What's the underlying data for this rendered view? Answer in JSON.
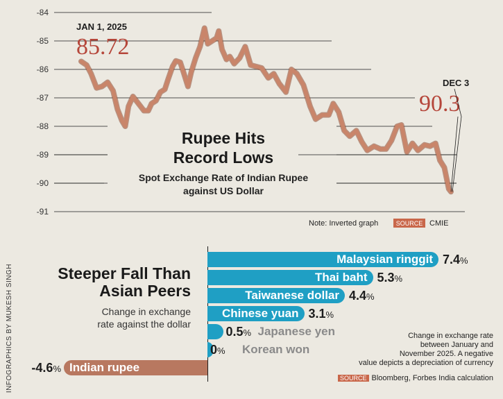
{
  "chart_data": [
    {
      "type": "line",
      "title": "Rupee Hits Record Lows",
      "subtitle": "Spot Exchange Rate of Indian Rupee against US Dollar",
      "y_inverted": true,
      "ylim": [
        -91,
        -84
      ],
      "yticks": [
        "-84",
        "-85",
        "-86",
        "-87",
        "-88",
        "-89",
        "-90",
        "-91"
      ],
      "x_start": "2025-01-01",
      "x_end": "2025-12-03",
      "x": [
        "2025-01-01",
        "2025-01-06",
        "2025-01-10",
        "2025-01-15",
        "2025-01-20",
        "2025-01-25",
        "2025-01-30",
        "2025-02-03",
        "2025-02-07",
        "2025-02-10",
        "2025-02-13",
        "2025-02-17",
        "2025-02-20",
        "2025-02-24",
        "2025-02-27",
        "2025-03-03",
        "2025-03-06",
        "2025-03-10",
        "2025-03-14",
        "2025-03-18",
        "2025-03-21",
        "2025-03-25",
        "2025-03-28",
        "2025-04-01",
        "2025-04-04",
        "2025-04-08",
        "2025-04-11",
        "2025-04-15",
        "2025-04-19",
        "2025-04-23",
        "2025-04-26",
        "2025-04-30",
        "2025-05-04",
        "2025-05-06",
        "2025-05-09",
        "2025-05-13",
        "2025-05-16",
        "2025-05-20",
        "2025-05-25",
        "2025-05-30",
        "2025-06-04",
        "2025-06-09",
        "2025-06-14",
        "2025-06-20",
        "2025-06-25",
        "2025-06-30",
        "2025-07-06",
        "2025-07-11",
        "2025-07-16",
        "2025-07-22",
        "2025-07-28",
        "2025-08-02",
        "2025-08-08",
        "2025-08-14",
        "2025-08-18",
        "2025-08-23",
        "2025-08-28",
        "2025-09-02",
        "2025-09-08",
        "2025-09-13",
        "2025-09-18",
        "2025-09-24",
        "2025-09-30",
        "2025-10-05",
        "2025-10-10",
        "2025-10-15",
        "2025-10-19",
        "2025-10-24",
        "2025-10-29",
        "2025-11-03",
        "2025-11-09",
        "2025-11-14",
        "2025-11-19",
        "2025-11-23",
        "2025-11-27",
        "2025-12-01",
        "2025-12-03"
      ],
      "series": [
        {
          "values": [
            -85.72,
            -85.85,
            -86.15,
            -86.65,
            -86.6,
            -86.45,
            -86.75,
            -87.4,
            -87.8,
            -88.0,
            -87.3,
            -86.95,
            -87.1,
            -87.3,
            -87.45,
            -87.45,
            -87.2,
            -87.1,
            -86.8,
            -86.7,
            -86.35,
            -85.9,
            -85.7,
            -85.75,
            -86.1,
            -86.6,
            -86.1,
            -85.6,
            -85.2,
            -84.55,
            -85.1,
            -85.0,
            -84.9,
            -84.65,
            -85.3,
            -85.65,
            -85.55,
            -85.8,
            -85.6,
            -85.2,
            -85.85,
            -85.9,
            -85.95,
            -86.3,
            -86.15,
            -86.5,
            -86.8,
            -86.0,
            -86.15,
            -86.55,
            -87.3,
            -87.75,
            -87.6,
            -87.6,
            -87.2,
            -87.5,
            -88.15,
            -88.35,
            -88.15,
            -88.55,
            -88.85,
            -88.7,
            -88.8,
            -88.8,
            -88.5,
            -88.0,
            -87.95,
            -88.9,
            -88.6,
            -88.85,
            -88.65,
            -88.7,
            -88.6,
            -89.2,
            -89.45,
            -90.2,
            -90.3
          ]
        }
      ],
      "annotations": [
        {
          "label": "JAN 1, 2025",
          "value": "85.72"
        },
        {
          "label": "DEC 3",
          "value": "90.3"
        }
      ],
      "note": "Note: Inverted graph",
      "source_tag": "SOURCE",
      "source": "CMIE",
      "grid": true
    },
    {
      "type": "bar",
      "orientation": "horizontal",
      "title_line1": "Steeper Fall Than",
      "title_line2": "Asian Peers",
      "subtitle_line1": "Change in exchange",
      "subtitle_line2": "rate against the dollar",
      "categories": [
        "Malaysian ringgit",
        "Thai baht",
        "Taiwanese dollar",
        "Chinese yuan",
        "Japanese yen",
        "Korean won",
        "Indian rupee"
      ],
      "values": [
        7.4,
        5.3,
        4.4,
        3.1,
        0.5,
        0,
        -4.6
      ],
      "value_labels": [
        "7.4",
        "5.3",
        "4.4",
        "3.1",
        "0.5",
        "0",
        "-4.6"
      ],
      "unit": "%",
      "colors": {
        "positive": "#1f9fc4",
        "negative": "#b87860"
      },
      "note_lines": [
        "Change in exchange rate",
        "between January and",
        "November 2025. A negative",
        "value depicts a depreciation of currency"
      ],
      "source_tag": "SOURCE",
      "source": "Bloomberg, Forbes India calculation"
    }
  ],
  "credit": "INFOGRAPHICS BY MUKESH SINGH",
  "colors": {
    "background": "#ece9e1",
    "line": "#c9856a",
    "accent_red": "#b5463a"
  }
}
